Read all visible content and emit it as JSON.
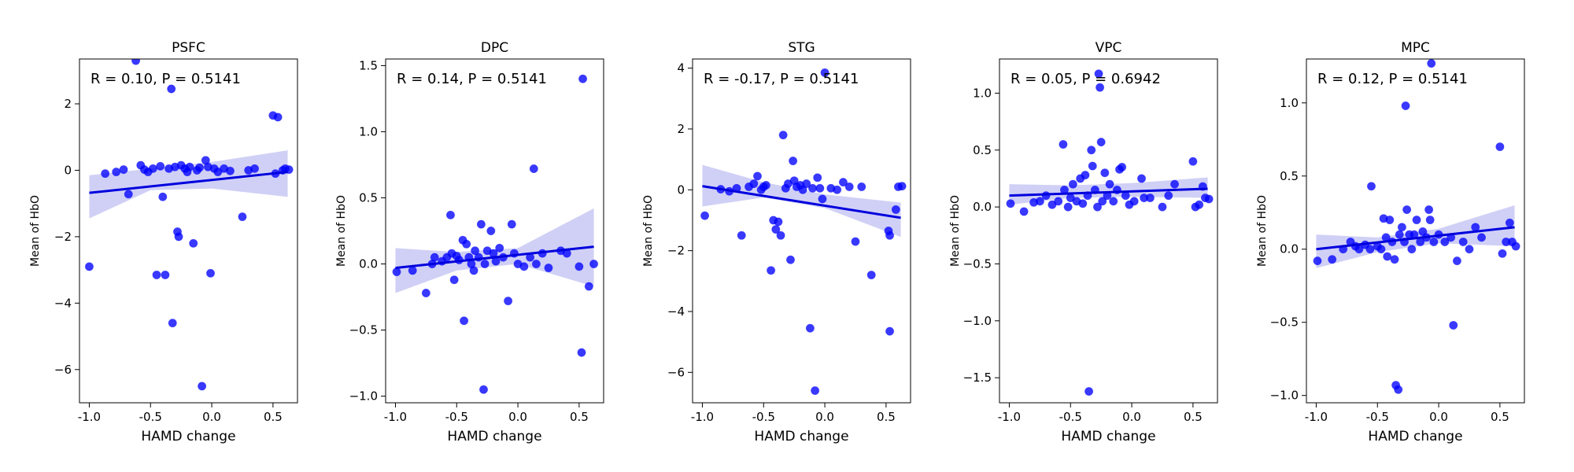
{
  "figure": {
    "accent": "#0000ff",
    "line_color": "#0000dd",
    "band_color": "#c8c8f5"
  },
  "chart_data": [
    {
      "type": "scatter",
      "title": "PSFC",
      "xlabel": "HAMD change",
      "ylabel": "Mean of HbO",
      "stat_text": "R = 0.10, P = 0.5141",
      "xlim": [
        -1.08,
        0.7
      ],
      "ylim": [
        -7.0,
        3.35
      ],
      "xticks": [
        -1.0,
        -0.5,
        0.0,
        0.5
      ],
      "xtick_labels": [
        "-1.0",
        "-0.5",
        "0.0",
        "0.5"
      ],
      "yticks": [
        -6,
        -4,
        -2,
        0,
        2
      ],
      "ytick_labels": [
        "−6",
        "−4",
        "−2",
        "0",
        "2"
      ],
      "grid": false,
      "fit": {
        "x": [
          -1.0,
          0.62
        ],
        "y": [
          -0.68,
          -0.05
        ]
      },
      "ci_upper": [
        [
          -1.0,
          -0.15
        ],
        [
          -0.5,
          0.05
        ],
        [
          0.0,
          0.25
        ],
        [
          0.62,
          0.6
        ]
      ],
      "ci_lower": [
        [
          -1.0,
          -1.45
        ],
        [
          -0.5,
          -0.6
        ],
        [
          0.0,
          -0.55
        ],
        [
          0.62,
          -0.8
        ]
      ],
      "points": [
        [
          -1.0,
          -2.9
        ],
        [
          -0.87,
          -0.1
        ],
        [
          -0.78,
          -0.05
        ],
        [
          -0.72,
          0.02
        ],
        [
          -0.68,
          -0.72
        ],
        [
          -0.62,
          3.3
        ],
        [
          -0.58,
          0.15
        ],
        [
          -0.55,
          0.02
        ],
        [
          -0.52,
          -0.05
        ],
        [
          -0.48,
          0.05
        ],
        [
          -0.45,
          -3.15
        ],
        [
          -0.42,
          0.12
        ],
        [
          -0.4,
          -0.8
        ],
        [
          -0.38,
          -3.15
        ],
        [
          -0.35,
          0.05
        ],
        [
          -0.33,
          2.45
        ],
        [
          -0.32,
          -4.6
        ],
        [
          -0.3,
          0.1
        ],
        [
          -0.28,
          -1.85
        ],
        [
          -0.27,
          -2.0
        ],
        [
          -0.25,
          0.15
        ],
        [
          -0.22,
          0.05
        ],
        [
          -0.2,
          -0.05
        ],
        [
          -0.18,
          0.1
        ],
        [
          -0.15,
          -2.2
        ],
        [
          -0.12,
          0.0
        ],
        [
          -0.1,
          0.08
        ],
        [
          -0.08,
          -6.5
        ],
        [
          -0.05,
          0.3
        ],
        [
          -0.03,
          0.1
        ],
        [
          -0.01,
          -3.1
        ],
        [
          0.02,
          0.05
        ],
        [
          0.05,
          -0.05
        ],
        [
          0.1,
          0.05
        ],
        [
          0.15,
          -0.02
        ],
        [
          0.25,
          -1.4
        ],
        [
          0.3,
          0.0
        ],
        [
          0.35,
          0.05
        ],
        [
          0.5,
          1.65
        ],
        [
          0.52,
          -0.1
        ],
        [
          0.54,
          1.6
        ],
        [
          0.58,
          0.0
        ],
        [
          0.6,
          0.05
        ],
        [
          0.63,
          0.02
        ]
      ]
    },
    {
      "type": "scatter",
      "title": "DPC",
      "xlabel": "HAMD change",
      "ylabel": "Mean of HbO",
      "stat_text": "R = 0.14, P = 0.5141",
      "xlim": [
        -1.08,
        0.7
      ],
      "ylim": [
        -1.05,
        1.55
      ],
      "xticks": [
        -1.0,
        -0.5,
        0.0,
        0.5
      ],
      "xtick_labels": [
        "-1.0",
        "-0.5",
        "0.0",
        "0.5"
      ],
      "yticks": [
        -1.0,
        -0.5,
        0.0,
        0.5,
        1.0,
        1.5
      ],
      "ytick_labels": [
        "−1.0",
        "−0.5",
        "0.0",
        "0.5",
        "1.0",
        "1.5"
      ],
      "grid": false,
      "fit": {
        "x": [
          -1.0,
          0.62
        ],
        "y": [
          -0.03,
          0.13
        ]
      },
      "ci_upper": [
        [
          -1.0,
          0.12
        ],
        [
          -0.5,
          0.09
        ],
        [
          0.0,
          0.12
        ],
        [
          0.62,
          0.42
        ]
      ],
      "ci_lower": [
        [
          -1.0,
          -0.22
        ],
        [
          -0.5,
          -0.05
        ],
        [
          0.0,
          0.0
        ],
        [
          0.62,
          -0.17
        ]
      ],
      "points": [
        [
          -0.99,
          -0.06
        ],
        [
          -0.86,
          -0.05
        ],
        [
          -0.75,
          -0.22
        ],
        [
          -0.7,
          0.0
        ],
        [
          -0.68,
          0.05
        ],
        [
          -0.62,
          0.02
        ],
        [
          -0.58,
          0.05
        ],
        [
          -0.55,
          0.37
        ],
        [
          -0.54,
          0.08
        ],
        [
          -0.52,
          -0.12
        ],
        [
          -0.5,
          0.06
        ],
        [
          -0.48,
          0.03
        ],
        [
          -0.45,
          0.18
        ],
        [
          -0.44,
          -0.43
        ],
        [
          -0.42,
          0.15
        ],
        [
          -0.4,
          0.05
        ],
        [
          -0.38,
          0.0
        ],
        [
          -0.36,
          -0.05
        ],
        [
          -0.35,
          0.1
        ],
        [
          -0.32,
          0.05
        ],
        [
          -0.3,
          0.3
        ],
        [
          -0.28,
          -0.95
        ],
        [
          -0.27,
          0.0
        ],
        [
          -0.25,
          0.1
        ],
        [
          -0.22,
          0.25
        ],
        [
          -0.2,
          0.08
        ],
        [
          -0.18,
          0.02
        ],
        [
          -0.15,
          0.12
        ],
        [
          -0.12,
          0.05
        ],
        [
          -0.08,
          -0.28
        ],
        [
          -0.05,
          0.3
        ],
        [
          -0.03,
          0.08
        ],
        [
          0.0,
          0.0
        ],
        [
          0.05,
          -0.02
        ],
        [
          0.1,
          0.05
        ],
        [
          0.13,
          0.72
        ],
        [
          0.15,
          0.0
        ],
        [
          0.2,
          0.08
        ],
        [
          0.25,
          -0.03
        ],
        [
          0.35,
          0.1
        ],
        [
          0.4,
          0.08
        ],
        [
          0.5,
          -0.02
        ],
        [
          0.52,
          -0.67
        ],
        [
          0.53,
          1.4
        ],
        [
          0.58,
          -0.17
        ],
        [
          0.62,
          0.0
        ]
      ]
    },
    {
      "type": "scatter",
      "title": "STG",
      "xlabel": "HAMD change",
      "ylabel": "Mean of HbO",
      "stat_text": "R = -0.17, P = 0.5141",
      "xlim": [
        -1.08,
        0.7
      ],
      "ylim": [
        -7.0,
        4.3
      ],
      "xticks": [
        -1.0,
        -0.5,
        0.0,
        0.5
      ],
      "xtick_labels": [
        "-1.0",
        "-0.5",
        "0.0",
        "0.5"
      ],
      "yticks": [
        -6,
        -4,
        -2,
        0,
        2,
        4
      ],
      "ytick_labels": [
        "−6",
        "−4",
        "−2",
        "0",
        "2",
        "4"
      ],
      "grid": false,
      "fit": {
        "x": [
          -1.0,
          0.62
        ],
        "y": [
          0.12,
          -0.92
        ]
      },
      "ci_upper": [
        [
          -1.0,
          0.82
        ],
        [
          -0.5,
          0.25
        ],
        [
          0.0,
          -0.15
        ],
        [
          0.62,
          -0.42
        ]
      ],
      "ci_lower": [
        [
          -1.0,
          -0.55
        ],
        [
          -0.5,
          -0.25
        ],
        [
          0.0,
          -0.6
        ],
        [
          0.62,
          -1.55
        ]
      ],
      "points": [
        [
          -0.98,
          -0.85
        ],
        [
          -0.85,
          0.02
        ],
        [
          -0.78,
          -0.05
        ],
        [
          -0.72,
          0.05
        ],
        [
          -0.68,
          -1.5
        ],
        [
          -0.62,
          0.1
        ],
        [
          -0.58,
          0.2
        ],
        [
          -0.55,
          0.45
        ],
        [
          -0.52,
          0.0
        ],
        [
          -0.5,
          0.1
        ],
        [
          -0.48,
          0.15
        ],
        [
          -0.44,
          -2.65
        ],
        [
          -0.42,
          -1.0
        ],
        [
          -0.4,
          -1.3
        ],
        [
          -0.38,
          -1.05
        ],
        [
          -0.36,
          -1.5
        ],
        [
          -0.34,
          1.8
        ],
        [
          -0.32,
          0.05
        ],
        [
          -0.3,
          0.2
        ],
        [
          -0.28,
          -2.3
        ],
        [
          -0.26,
          0.95
        ],
        [
          -0.25,
          0.3
        ],
        [
          -0.23,
          0.1
        ],
        [
          -0.2,
          0.15
        ],
        [
          -0.18,
          0.0
        ],
        [
          -0.15,
          0.2
        ],
        [
          -0.12,
          -4.55
        ],
        [
          -0.1,
          0.05
        ],
        [
          -0.08,
          -6.6
        ],
        [
          -0.06,
          0.4
        ],
        [
          -0.04,
          0.05
        ],
        [
          -0.02,
          -0.3
        ],
        [
          0.0,
          3.85
        ],
        [
          0.05,
          0.05
        ],
        [
          0.1,
          0.0
        ],
        [
          0.15,
          0.25
        ],
        [
          0.2,
          0.1
        ],
        [
          0.25,
          -1.7
        ],
        [
          0.3,
          0.1
        ],
        [
          0.38,
          -2.8
        ],
        [
          0.52,
          -1.35
        ],
        [
          0.53,
          -1.5
        ],
        [
          0.53,
          -4.65
        ],
        [
          0.58,
          -0.65
        ],
        [
          0.6,
          0.1
        ],
        [
          0.63,
          0.12
        ]
      ]
    },
    {
      "type": "scatter",
      "title": "VPC",
      "xlabel": "HAMD change",
      "ylabel": "Mean of HbO",
      "stat_text": "R = 0.05, P = 0.6942",
      "xlim": [
        -1.08,
        0.7
      ],
      "ylim": [
        -1.72,
        1.3
      ],
      "xticks": [
        -1.0,
        -0.5,
        0.0,
        0.5
      ],
      "xtick_labels": [
        "-1.0",
        "-0.5",
        "0.0",
        "0.5"
      ],
      "yticks": [
        -1.5,
        -1.0,
        -0.5,
        0.0,
        0.5,
        1.0
      ],
      "ytick_labels": [
        "−1.5",
        "−1.0",
        "−0.5",
        "0.0",
        "0.5",
        "1.0"
      ],
      "grid": false,
      "fit": {
        "x": [
          -1.0,
          0.62
        ],
        "y": [
          0.1,
          0.16
        ]
      },
      "ci_upper": [
        [
          -1.0,
          0.2
        ],
        [
          -0.5,
          0.19
        ],
        [
          0.0,
          0.21
        ],
        [
          0.62,
          0.26
        ]
      ],
      "ci_lower": [
        [
          -1.0,
          0.02
        ],
        [
          -0.5,
          0.08
        ],
        [
          0.0,
          0.09
        ],
        [
          0.62,
          0.08
        ]
      ],
      "points": [
        [
          -0.99,
          0.03
        ],
        [
          -0.88,
          -0.04
        ],
        [
          -0.8,
          0.04
        ],
        [
          -0.75,
          0.05
        ],
        [
          -0.7,
          0.1
        ],
        [
          -0.65,
          0.02
        ],
        [
          -0.6,
          0.05
        ],
        [
          -0.56,
          0.55
        ],
        [
          -0.55,
          0.15
        ],
        [
          -0.52,
          0.0
        ],
        [
          -0.5,
          0.08
        ],
        [
          -0.48,
          0.2
        ],
        [
          -0.45,
          0.05
        ],
        [
          -0.42,
          0.25
        ],
        [
          -0.4,
          0.03
        ],
        [
          -0.38,
          0.28
        ],
        [
          -0.36,
          0.1
        ],
        [
          -0.35,
          -1.62
        ],
        [
          -0.33,
          0.5
        ],
        [
          -0.32,
          0.36
        ],
        [
          -0.3,
          0.15
        ],
        [
          -0.28,
          0.0
        ],
        [
          -0.27,
          1.17
        ],
        [
          -0.26,
          1.05
        ],
        [
          -0.25,
          0.57
        ],
        [
          -0.24,
          0.05
        ],
        [
          -0.22,
          0.3
        ],
        [
          -0.2,
          0.1
        ],
        [
          -0.18,
          0.2
        ],
        [
          -0.15,
          0.05
        ],
        [
          -0.12,
          0.15
        ],
        [
          -0.1,
          0.33
        ],
        [
          -0.08,
          0.35
        ],
        [
          -0.05,
          0.1
        ],
        [
          -0.02,
          0.02
        ],
        [
          0.02,
          0.05
        ],
        [
          0.08,
          0.25
        ],
        [
          0.1,
          0.08
        ],
        [
          0.15,
          0.08
        ],
        [
          0.25,
          0.0
        ],
        [
          0.3,
          0.1
        ],
        [
          0.35,
          0.2
        ],
        [
          0.5,
          0.4
        ],
        [
          0.52,
          0.0
        ],
        [
          0.55,
          0.02
        ],
        [
          0.58,
          0.18
        ],
        [
          0.6,
          0.08
        ],
        [
          0.63,
          0.07
        ]
      ]
    },
    {
      "type": "scatter",
      "title": "MPC",
      "xlabel": "HAMD change",
      "ylabel": "Mean of HbO",
      "stat_text": "R = 0.12, P = 0.5141",
      "xlim": [
        -1.08,
        0.7
      ],
      "ylim": [
        -1.05,
        1.3
      ],
      "xticks": [
        -1.0,
        -0.5,
        0.0,
        0.5
      ],
      "xtick_labels": [
        "-1.0",
        "-0.5",
        "0.0",
        "0.5"
      ],
      "yticks": [
        -1.0,
        -0.5,
        0.0,
        0.5,
        1.0
      ],
      "ytick_labels": [
        "−1.0",
        "−0.5",
        "0.0",
        "0.5",
        "1.0"
      ],
      "grid": false,
      "fit": {
        "x": [
          -1.0,
          0.62
        ],
        "y": [
          0.0,
          0.15
        ]
      },
      "ci_upper": [
        [
          -1.0,
          0.1
        ],
        [
          -0.5,
          0.08
        ],
        [
          0.0,
          0.14
        ],
        [
          0.62,
          0.3
        ]
      ],
      "ci_lower": [
        [
          -1.0,
          -0.13
        ],
        [
          -0.5,
          -0.02
        ],
        [
          0.0,
          0.04
        ],
        [
          0.62,
          0.02
        ]
      ],
      "points": [
        [
          -0.99,
          -0.08
        ],
        [
          -0.87,
          -0.07
        ],
        [
          -0.78,
          0.0
        ],
        [
          -0.72,
          0.05
        ],
        [
          -0.68,
          0.02
        ],
        [
          -0.65,
          0.0
        ],
        [
          -0.6,
          0.03
        ],
        [
          -0.56,
          0.0
        ],
        [
          -0.55,
          0.43
        ],
        [
          -0.5,
          0.02
        ],
        [
          -0.47,
          0.0
        ],
        [
          -0.45,
          0.21
        ],
        [
          -0.43,
          0.08
        ],
        [
          -0.42,
          -0.05
        ],
        [
          -0.4,
          0.2
        ],
        [
          -0.38,
          0.05
        ],
        [
          -0.36,
          -0.07
        ],
        [
          -0.35,
          -0.93
        ],
        [
          -0.33,
          -0.96
        ],
        [
          -0.32,
          0.1
        ],
        [
          -0.3,
          0.15
        ],
        [
          -0.28,
          0.05
        ],
        [
          -0.27,
          0.98
        ],
        [
          -0.26,
          0.27
        ],
        [
          -0.24,
          0.1
        ],
        [
          -0.22,
          0.0
        ],
        [
          -0.2,
          0.1
        ],
        [
          -0.18,
          0.2
        ],
        [
          -0.15,
          0.05
        ],
        [
          -0.13,
          0.12
        ],
        [
          -0.1,
          0.08
        ],
        [
          -0.08,
          0.27
        ],
        [
          -0.07,
          0.2
        ],
        [
          -0.06,
          1.27
        ],
        [
          -0.04,
          0.05
        ],
        [
          0.0,
          0.1
        ],
        [
          0.05,
          0.05
        ],
        [
          0.1,
          0.08
        ],
        [
          0.12,
          -0.52
        ],
        [
          0.15,
          -0.08
        ],
        [
          0.2,
          0.05
        ],
        [
          0.25,
          0.0
        ],
        [
          0.3,
          0.15
        ],
        [
          0.35,
          0.08
        ],
        [
          0.5,
          0.7
        ],
        [
          0.52,
          -0.03
        ],
        [
          0.55,
          0.05
        ],
        [
          0.58,
          0.18
        ],
        [
          0.6,
          0.05
        ],
        [
          0.63,
          0.02
        ]
      ]
    }
  ]
}
